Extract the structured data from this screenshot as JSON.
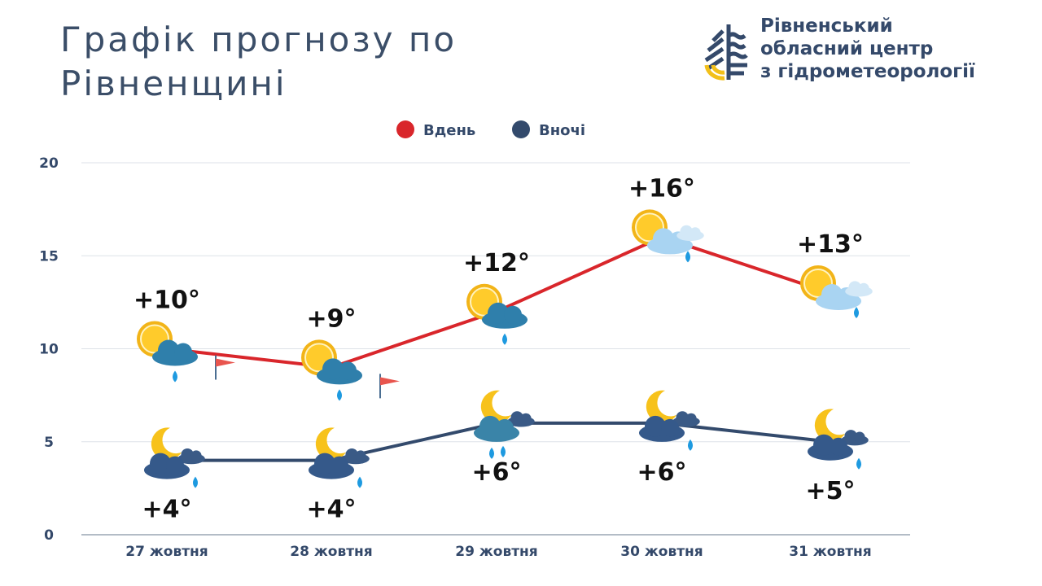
{
  "header": {
    "title_line1": "Графік прогнозу по",
    "title_line2": "Рівненщині",
    "org_line1": "Рівненський",
    "org_line2": "обласний центр",
    "org_line3": "з гідрометеорології"
  },
  "chart_data": {
    "type": "line",
    "categories": [
      "27 жовтня",
      "28 жовтня",
      "29 жовтня",
      "30 жовтня",
      "31 жовтня"
    ],
    "series": [
      {
        "name": "Вдень",
        "color": "#d9262b",
        "values": [
          10,
          9,
          12,
          16,
          13
        ],
        "labels": [
          "+10°",
          "+9°",
          "+12°",
          "+16°",
          "+13°"
        ],
        "icons": [
          "sun-cloud-rain-wind-icon",
          "sun-cloud-rain-wind-icon",
          "sun-cloud-rain-icon",
          "sun-cloud-light-rain-icon",
          "sun-cloud-light-rain-icon"
        ]
      },
      {
        "name": "Вночі",
        "color": "#334a6c",
        "values": [
          4,
          4,
          6,
          6,
          5
        ],
        "labels": [
          "+4°",
          "+4°",
          "+6°",
          "+6°",
          "+5°"
        ],
        "icons": [
          "moon-cloud-rain-icon",
          "moon-cloud-rain-icon",
          "moon-cloud-heavy-rain-icon",
          "moon-cloud-rain-icon",
          "moon-cloud-rain-icon"
        ]
      }
    ],
    "ylim": [
      0,
      20
    ],
    "yticks": [
      "0",
      "5",
      "10",
      "15",
      "20"
    ],
    "grid": true,
    "legend": "top-center"
  }
}
